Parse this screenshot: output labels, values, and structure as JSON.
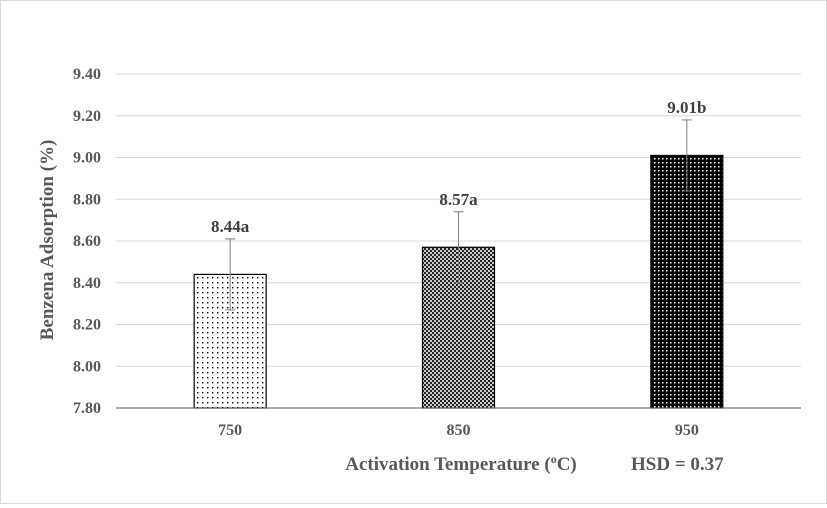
{
  "chart_data": {
    "type": "bar",
    "categories": [
      "750",
      "850",
      "950"
    ],
    "values": [
      8.44,
      8.57,
      9.01
    ],
    "errors": [
      0.17,
      0.17,
      0.17
    ],
    "data_labels": [
      "8.44a",
      "8.57a",
      "9.01b"
    ],
    "bar_patterns": [
      "dots-sparse",
      "cross-hatch",
      "dense-dark"
    ],
    "ylabel": "Benzena Adsorption (%)",
    "xlabel_main": "Activation Temperature (",
    "xlabel_sup": "o",
    "xlabel_unit": "C)",
    "hsd_note": "HSD = 0.37",
    "ylim": [
      7.8,
      9.4
    ],
    "yticks": [
      "7.80",
      "8.00",
      "8.20",
      "8.40",
      "8.60",
      "8.80",
      "9.00",
      "9.20",
      "9.40"
    ],
    "grid": true,
    "legend": "none",
    "colors": {
      "axis": "#595959",
      "grid": "#d9d9d9",
      "bar_edge": "#000000",
      "error_bar": "#7f7f7f",
      "text": "#595959"
    }
  }
}
